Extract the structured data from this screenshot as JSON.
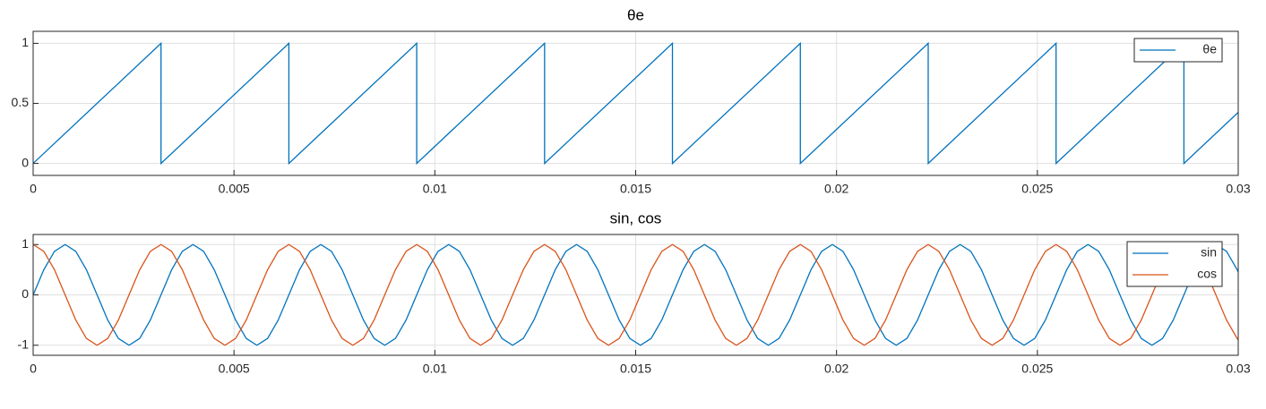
{
  "chart_data": [
    {
      "type": "line",
      "title": "θe",
      "x": [
        0,
        0.003183,
        0.003183,
        0.006366,
        0.006366,
        0.009549,
        0.009549,
        0.012732,
        0.012732,
        0.015915,
        0.015915,
        0.019099,
        0.019099,
        0.022282,
        0.022282,
        0.025465,
        0.025465,
        0.028648,
        0.028648,
        0.03
      ],
      "series": [
        {
          "name": "θe",
          "color": "#0072BD",
          "values": [
            0,
            1,
            0,
            1,
            0,
            1,
            0,
            1,
            0,
            1,
            0,
            1,
            0,
            1,
            0,
            1,
            0,
            1,
            0,
            0.425
          ]
        }
      ],
      "xlim": [
        0,
        0.03
      ],
      "xticks": [
        0,
        0.005,
        0.01,
        0.015,
        0.02,
        0.025,
        0.03
      ],
      "ylim": [
        -0.1,
        1.1
      ],
      "yticks": [
        0,
        0.5,
        1
      ],
      "grid": true,
      "legend": "upper right"
    },
    {
      "type": "line",
      "title": "sin, cos",
      "x": [
        0,
        0.000265,
        0.000531,
        0.000796,
        0.001061,
        0.001326,
        0.001592,
        0.001857,
        0.002122,
        0.002387,
        0.002653,
        0.002918,
        0.003183,
        0.003448,
        0.003714,
        0.003979,
        0.004244,
        0.004509,
        0.004775,
        0.00504,
        0.005305,
        0.00557,
        0.005836,
        0.006101,
        0.006366,
        0.006631,
        0.006897,
        0.007162,
        0.007427,
        0.007692,
        0.007958,
        0.008223,
        0.008488,
        0.008753,
        0.009019,
        0.009284,
        0.009549,
        0.009814,
        0.01008,
        0.010345,
        0.01061,
        0.010875,
        0.011141,
        0.011406,
        0.011671,
        0.011936,
        0.012202,
        0.012467,
        0.012732,
        0.012997,
        0.013263,
        0.013528,
        0.013793,
        0.014058,
        0.014324,
        0.014589,
        0.014854,
        0.015119,
        0.015385,
        0.01565,
        0.015915,
        0.01618,
        0.016446,
        0.016711,
        0.016976,
        0.017241,
        0.017507,
        0.017772,
        0.018037,
        0.018302,
        0.018568,
        0.018833,
        0.019099,
        0.019364,
        0.019629,
        0.019895,
        0.02016,
        0.020425,
        0.02069,
        0.020956,
        0.021221,
        0.021486,
        0.021751,
        0.022017,
        0.022282,
        0.022547,
        0.022812,
        0.023078,
        0.023343,
        0.023608,
        0.023873,
        0.024139,
        0.024404,
        0.024669,
        0.024934,
        0.0252,
        0.025465,
        0.02573,
        0.025995,
        0.026261,
        0.026526,
        0.026791,
        0.027056,
        0.027322,
        0.027587,
        0.027852,
        0.028117,
        0.028383,
        0.028648,
        0.028913,
        0.029178,
        0.029444,
        0.029709,
        0.029974,
        0.03
      ],
      "series": [
        {
          "name": "sin",
          "color": "#0072BD",
          "values": [
            0,
            0.5,
            0.866,
            1,
            0.866,
            0.5,
            0,
            -0.5,
            -0.866,
            -1,
            -0.866,
            -0.5,
            0,
            0.5,
            0.866,
            1,
            0.866,
            0.5,
            0,
            -0.5,
            -0.866,
            -1,
            -0.866,
            -0.5,
            0,
            0.5,
            0.866,
            1,
            0.866,
            0.5,
            0,
            -0.5,
            -0.866,
            -1,
            -0.866,
            -0.5,
            0,
            0.5,
            0.866,
            1,
            0.866,
            0.5,
            0,
            -0.5,
            -0.866,
            -1,
            -0.866,
            -0.5,
            0,
            0.5,
            0.866,
            1,
            0.866,
            0.5,
            0,
            -0.5,
            -0.866,
            -1,
            -0.866,
            -0.5,
            0,
            0.5,
            0.866,
            1,
            0.866,
            0.5,
            0,
            -0.5,
            -0.866,
            -1,
            -0.866,
            -0.5,
            0,
            0.5,
            0.866,
            1,
            0.866,
            0.5,
            0,
            -0.5,
            -0.866,
            -1,
            -0.866,
            -0.5,
            0,
            0.5,
            0.866,
            1,
            0.866,
            0.5,
            0,
            -0.5,
            -0.866,
            -1,
            -0.866,
            -0.5,
            0,
            0.5,
            0.866,
            1,
            0.866,
            0.5,
            0,
            -0.5,
            -0.866,
            -1,
            -0.866,
            -0.5,
            0,
            0.5,
            0.866,
            1,
            0.866,
            0.5,
            0.456
          ]
        },
        {
          "name": "cos",
          "color": "#D95319",
          "values": [
            1,
            0.866,
            0.5,
            0,
            -0.5,
            -0.866,
            -1,
            -0.866,
            -0.5,
            0,
            0.5,
            0.866,
            1,
            0.866,
            0.5,
            0,
            -0.5,
            -0.866,
            -1,
            -0.866,
            -0.5,
            0,
            0.5,
            0.866,
            1,
            0.866,
            0.5,
            0,
            -0.5,
            -0.866,
            -1,
            -0.866,
            -0.5,
            0,
            0.5,
            0.866,
            1,
            0.866,
            0.5,
            0,
            -0.5,
            -0.866,
            -1,
            -0.866,
            -0.5,
            0,
            0.5,
            0.866,
            1,
            0.866,
            0.5,
            0,
            -0.5,
            -0.866,
            -1,
            -0.866,
            -0.5,
            0,
            0.5,
            0.866,
            1,
            0.866,
            0.5,
            0,
            -0.5,
            -0.866,
            -1,
            -0.866,
            -0.5,
            0,
            0.5,
            0.866,
            1,
            0.866,
            0.5,
            0,
            -0.5,
            -0.866,
            -1,
            -0.866,
            -0.5,
            0,
            0.5,
            0.866,
            1,
            0.866,
            0.5,
            0,
            -0.5,
            -0.866,
            -1,
            -0.866,
            -0.5,
            0,
            0.5,
            0.866,
            1,
            0.866,
            0.5,
            0,
            -0.5,
            -0.866,
            -1,
            -0.866,
            -0.5,
            0,
            0.5,
            0.866,
            1,
            0.866,
            0.5,
            0,
            -0.5,
            -0.866,
            -0.89
          ]
        }
      ],
      "xlim": [
        0,
        0.03
      ],
      "xticks": [
        0,
        0.005,
        0.01,
        0.015,
        0.02,
        0.025,
        0.03
      ],
      "ylim": [
        -1.2,
        1.2
      ],
      "yticks": [
        -1,
        0,
        1
      ],
      "grid": true,
      "legend": "upper right"
    }
  ]
}
